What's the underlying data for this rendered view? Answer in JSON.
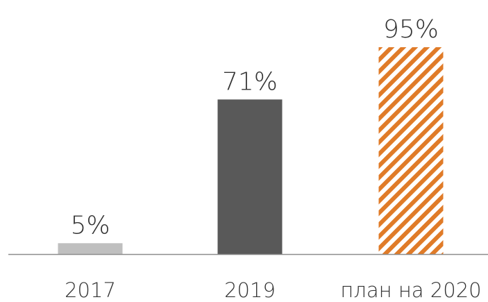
{
  "chart_data": {
    "type": "bar",
    "categories": [
      "2017",
      "2019",
      "план на 2020"
    ],
    "values": [
      5,
      71,
      95
    ],
    "value_labels": [
      "5%",
      "71%",
      "95%"
    ],
    "colors": [
      "#bfbfbf",
      "#595959",
      "#e07b28"
    ],
    "hatch": [
      false,
      false,
      true
    ]
  }
}
